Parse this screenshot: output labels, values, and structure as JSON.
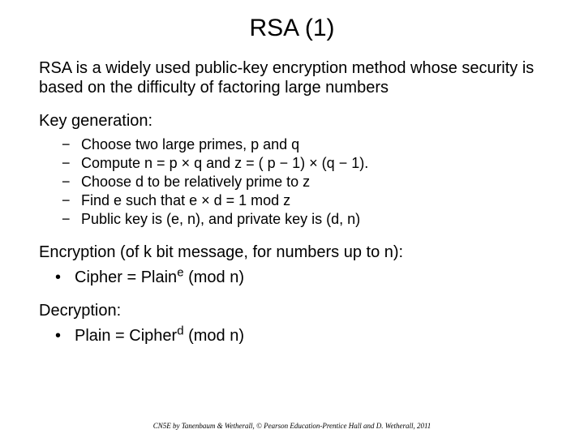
{
  "colors": {
    "background": "#ffffff",
    "text": "#000000"
  },
  "typography": {
    "title_fontsize": 30,
    "body_fontsize": 20,
    "bullet_fontsize": 18,
    "footer_fontsize": 9,
    "font_family": "Arial, Helvetica, sans-serif",
    "footer_font_family": "Times New Roman, serif"
  },
  "title": "RSA (1)",
  "intro": "RSA is a widely used public-key encryption method whose security is based on the difficulty of factoring large numbers",
  "keygen_label": "Key generation:",
  "keygen_items": [
    "Choose two large primes, p and q",
    "Compute n = p × q and z = ( p − 1) × (q − 1).",
    "Choose d to be relatively prime to z",
    "Find e such that e × d = 1 mod z",
    "Public key is (e, n), and private key is (d, n)"
  ],
  "encryption_label": "Encryption (of k bit message, for numbers up to n):",
  "encryption_item_pre": "Cipher = Plain",
  "encryption_item_sup": "e",
  "encryption_item_post": " (mod n)",
  "decryption_label": "Decryption:",
  "decryption_item_pre": "Plain = Cipher",
  "decryption_item_sup": "d",
  "decryption_item_post": " (mod n)",
  "footer": "CN5E by Tanenbaum & Wetherall, © Pearson Education-Prentice Hall and D. Wetherall, 2011"
}
